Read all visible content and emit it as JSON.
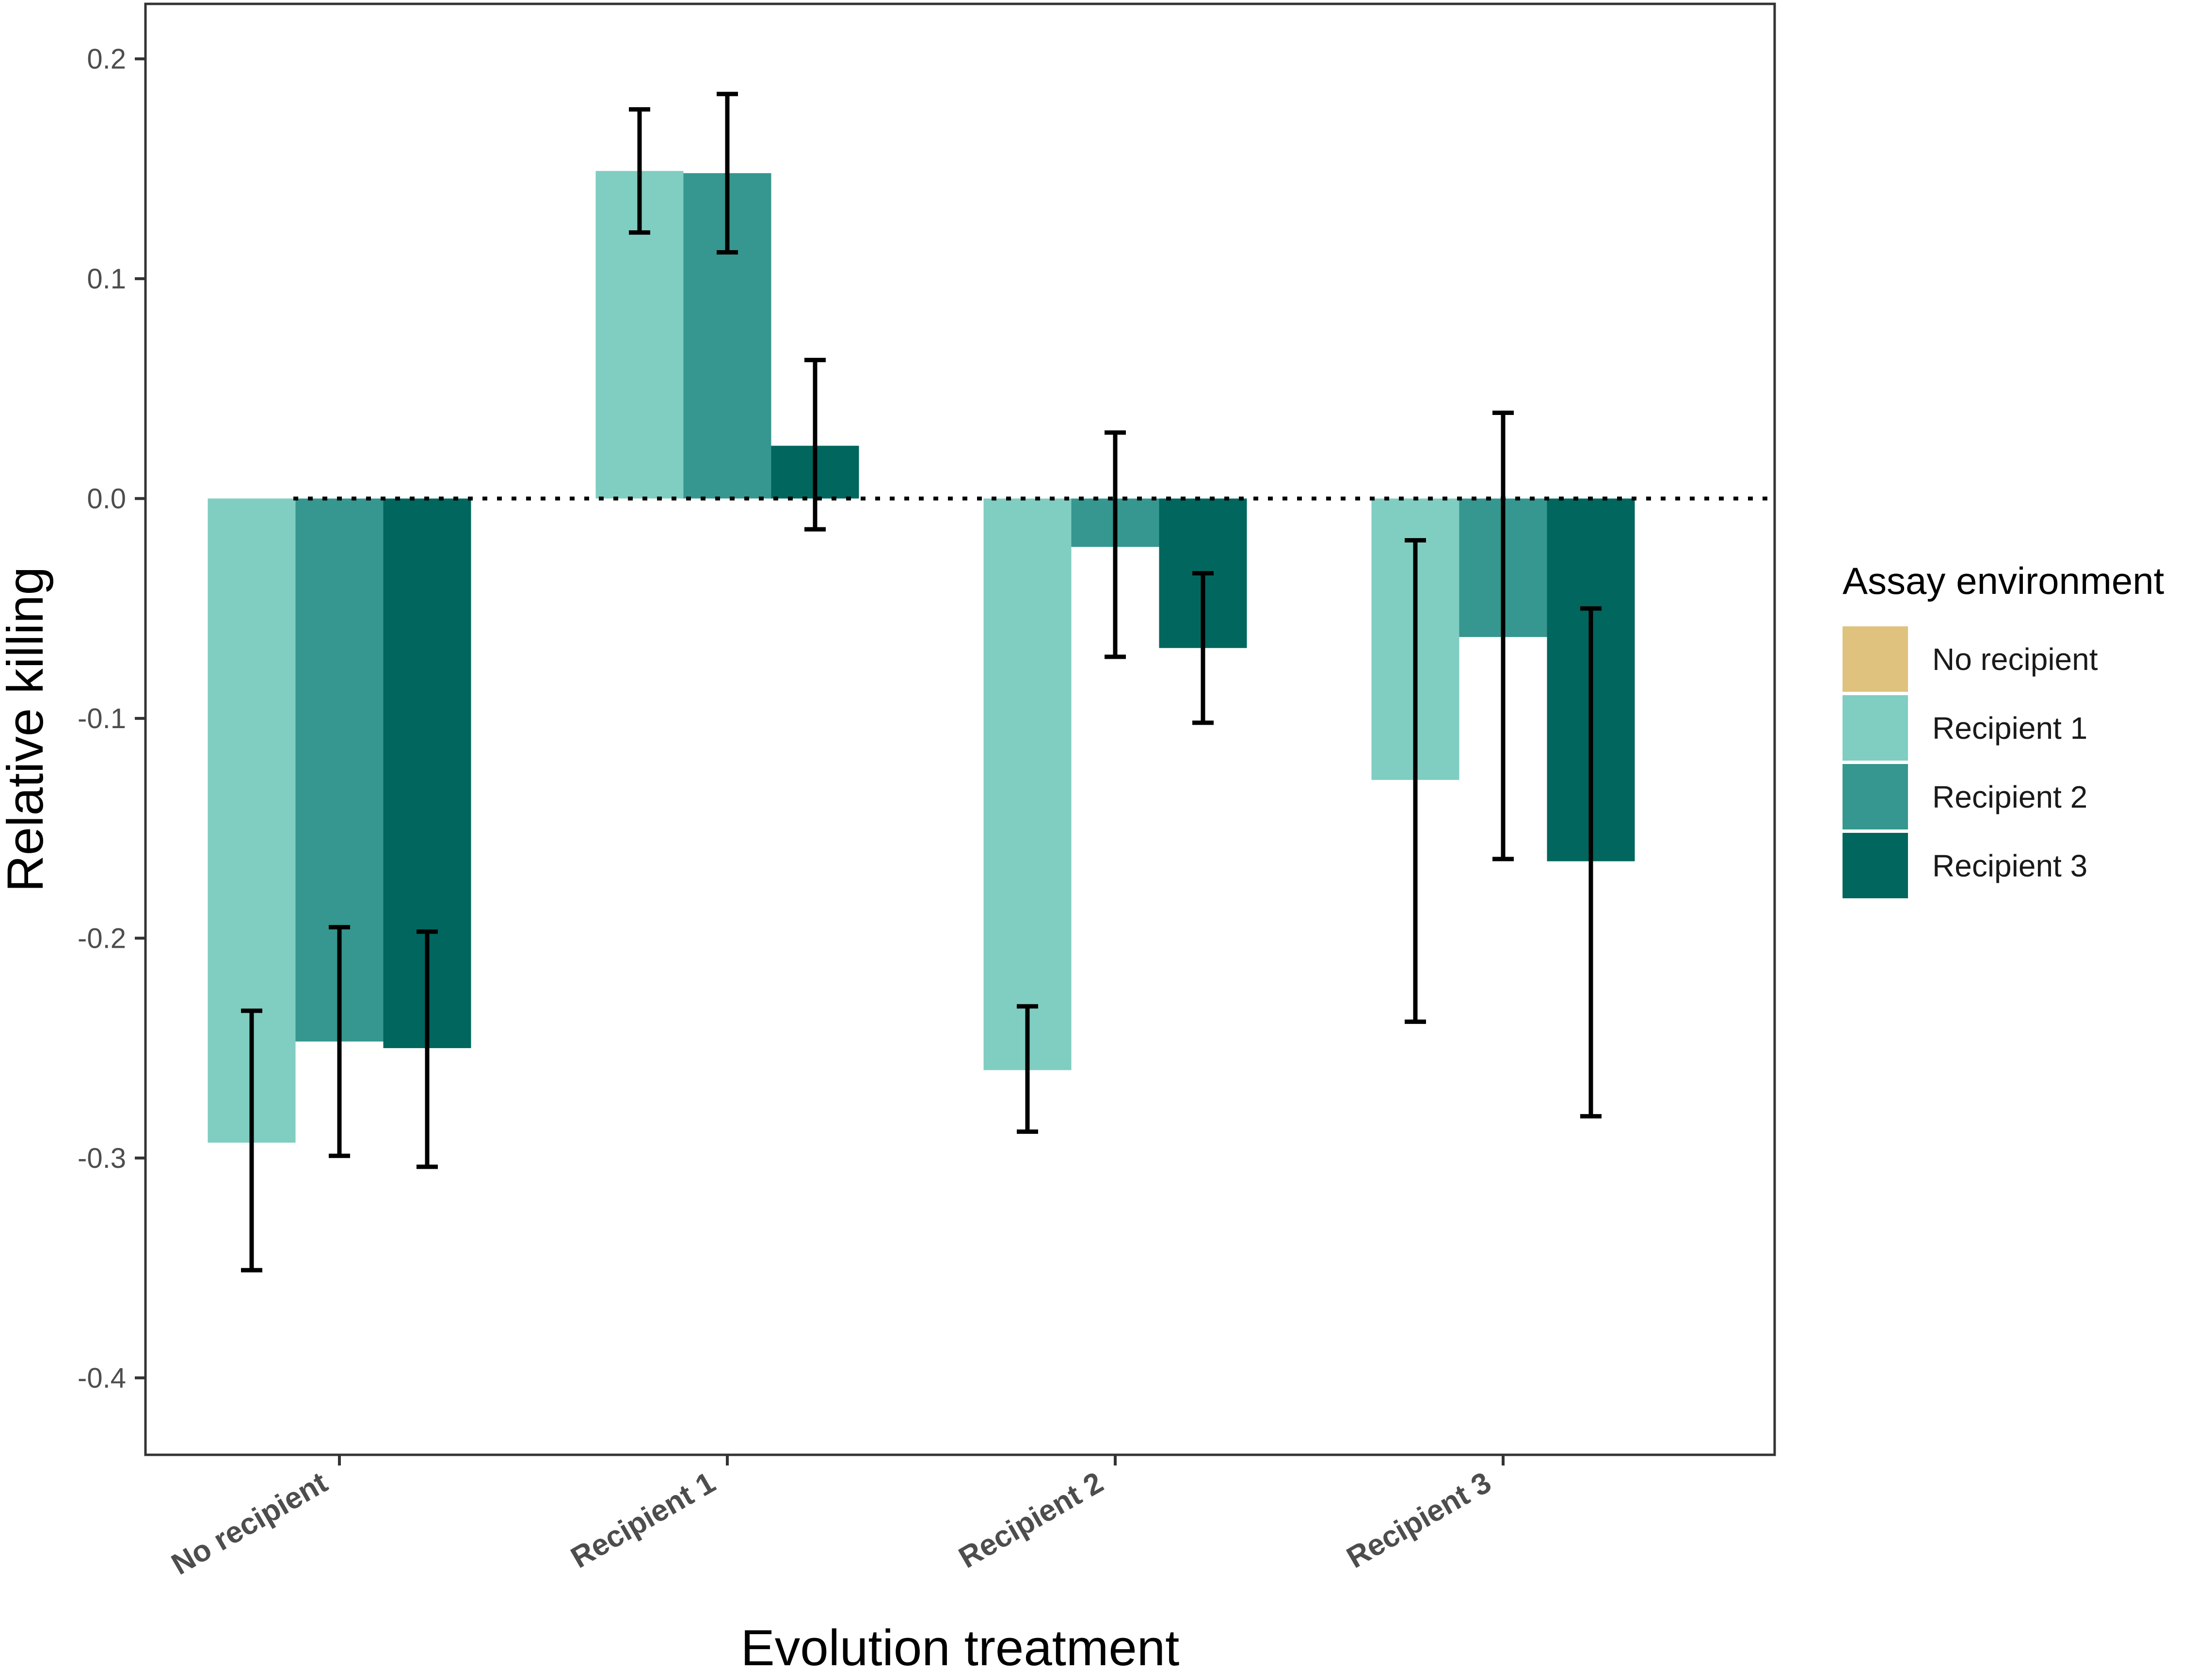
{
  "chart_data": {
    "type": "bar",
    "title": "",
    "xlabel": "Evolution treatment",
    "ylabel": "Relative killing",
    "ylim": [
      -0.435,
      0.225
    ],
    "yticks": [
      0.2,
      0.1,
      0.0,
      -0.1,
      -0.2,
      -0.3,
      -0.4
    ],
    "ytick_labels": [
      "0.2",
      "0.1",
      "0.0",
      "-0.1",
      "-0.2",
      "-0.3",
      "-0.4"
    ],
    "categories": [
      "No recipient",
      "Recipient 1",
      "Recipient 2",
      "Recipient 3"
    ],
    "reference_line": 0.0,
    "legend": {
      "title": "Assay environment",
      "position": "right",
      "entries": [
        {
          "name": "No recipient",
          "color": "#dfc27d"
        },
        {
          "name": "Recipient 1",
          "color": "#80cdc1"
        },
        {
          "name": "Recipient 2",
          "color": "#35978f"
        },
        {
          "name": "Recipient 3",
          "color": "#01665e"
        }
      ]
    },
    "series": [
      {
        "name": "Recipient 1",
        "color": "#80cdc1",
        "values": [
          -0.293,
          0.149,
          -0.26,
          -0.128
        ],
        "err_low": [
          -0.351,
          0.121,
          -0.288,
          -0.238
        ],
        "err_high": [
          -0.233,
          0.177,
          -0.231,
          -0.019
        ]
      },
      {
        "name": "Recipient 2",
        "color": "#35978f",
        "values": [
          -0.247,
          0.148,
          -0.022,
          -0.063
        ],
        "err_low": [
          -0.299,
          0.112,
          -0.072,
          -0.164
        ],
        "err_high": [
          -0.195,
          0.184,
          0.03,
          0.039
        ]
      },
      {
        "name": "Recipient 3",
        "color": "#01665e",
        "values": [
          -0.25,
          0.024,
          -0.068,
          -0.165
        ],
        "err_low": [
          -0.304,
          -0.014,
          -0.102,
          -0.281
        ],
        "err_high": [
          -0.197,
          0.063,
          -0.034,
          -0.05
        ]
      }
    ]
  }
}
